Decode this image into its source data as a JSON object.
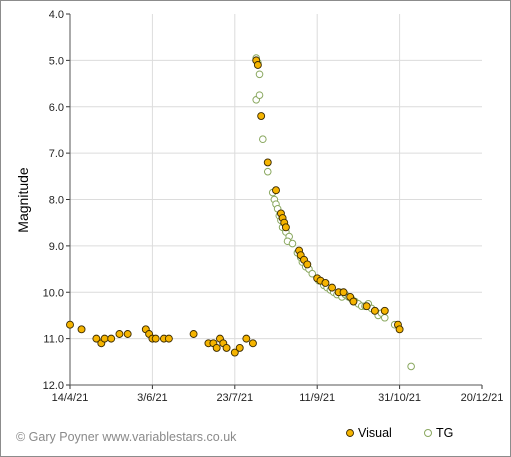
{
  "chart_data": {
    "type": "scatter",
    "ylabel": "Magnitude",
    "y_reversed": true,
    "ylim": [
      4.0,
      12.0
    ],
    "yticks": [
      "4.0",
      "5.0",
      "6.0",
      "7.0",
      "8.0",
      "9.0",
      "10.0",
      "11.0",
      "12.0"
    ],
    "xlim": [
      "2021-04-14",
      "2021-12-20"
    ],
    "xticks": [
      "14/4/21",
      "3/6/21",
      "23/7/21",
      "11/9/21",
      "31/10/21",
      "20/12/21"
    ],
    "grid": true,
    "legend": "bottom-right",
    "credit": "© Gary Poyner www.variablestars.co.uk",
    "series": [
      {
        "name": "Visual",
        "marker": "filled-circle",
        "color": "#f5b400",
        "edge": "#3a2a00",
        "points": [
          [
            "2021-04-14",
            10.7
          ],
          [
            "2021-04-21",
            10.8
          ],
          [
            "2021-04-30",
            11.0
          ],
          [
            "2021-05-03",
            11.1
          ],
          [
            "2021-05-05",
            11.0
          ],
          [
            "2021-05-09",
            11.0
          ],
          [
            "2021-05-14",
            10.9
          ],
          [
            "2021-05-19",
            10.9
          ],
          [
            "2021-05-30",
            10.8
          ],
          [
            "2021-06-01",
            10.9
          ],
          [
            "2021-06-03",
            11.0
          ],
          [
            "2021-06-05",
            11.0
          ],
          [
            "2021-06-10",
            11.0
          ],
          [
            "2021-06-13",
            11.0
          ],
          [
            "2021-06-28",
            10.9
          ],
          [
            "2021-07-07",
            11.1
          ],
          [
            "2021-07-10",
            11.1
          ],
          [
            "2021-07-12",
            11.2
          ],
          [
            "2021-07-14",
            11.0
          ],
          [
            "2021-07-16",
            11.1
          ],
          [
            "2021-07-18",
            11.2
          ],
          [
            "2021-07-23",
            11.3
          ],
          [
            "2021-07-26",
            11.2
          ],
          [
            "2021-07-30",
            11.0
          ],
          [
            "2021-08-03",
            11.1
          ],
          [
            "2021-08-05",
            5.0
          ],
          [
            "2021-08-06",
            5.1
          ],
          [
            "2021-08-08",
            6.2
          ],
          [
            "2021-08-12",
            7.2
          ],
          [
            "2021-08-17",
            7.8
          ],
          [
            "2021-08-20",
            8.3
          ],
          [
            "2021-08-21",
            8.4
          ],
          [
            "2021-08-22",
            8.5
          ],
          [
            "2021-08-23",
            8.6
          ],
          [
            "2021-08-31",
            9.1
          ],
          [
            "2021-09-01",
            9.2
          ],
          [
            "2021-09-03",
            9.3
          ],
          [
            "2021-09-05",
            9.4
          ],
          [
            "2021-09-11",
            9.7
          ],
          [
            "2021-09-13",
            9.75
          ],
          [
            "2021-09-16",
            9.8
          ],
          [
            "2021-09-20",
            9.9
          ],
          [
            "2021-09-24",
            10.0
          ],
          [
            "2021-09-27",
            10.0
          ],
          [
            "2021-10-01",
            10.1
          ],
          [
            "2021-10-03",
            10.2
          ],
          [
            "2021-10-11",
            10.3
          ],
          [
            "2021-10-16",
            10.4
          ],
          [
            "2021-10-22",
            10.4
          ],
          [
            "2021-10-30",
            10.7
          ],
          [
            "2021-10-31",
            10.8
          ]
        ]
      },
      {
        "name": "TG",
        "marker": "open-circle",
        "color": "#8aa860",
        "points": [
          [
            "2021-08-05",
            4.95
          ],
          [
            "2021-08-06",
            5.05
          ],
          [
            "2021-08-07",
            5.3
          ],
          [
            "2021-08-05",
            5.85
          ],
          [
            "2021-08-07",
            5.75
          ],
          [
            "2021-08-09",
            6.7
          ],
          [
            "2021-08-12",
            7.4
          ],
          [
            "2021-08-15",
            7.85
          ],
          [
            "2021-08-16",
            8.0
          ],
          [
            "2021-08-17",
            8.1
          ],
          [
            "2021-08-18",
            8.2
          ],
          [
            "2021-08-19",
            8.35
          ],
          [
            "2021-08-20",
            8.45
          ],
          [
            "2021-08-21",
            8.6
          ],
          [
            "2021-08-23",
            8.7
          ],
          [
            "2021-08-25",
            8.8
          ],
          [
            "2021-08-24",
            8.9
          ],
          [
            "2021-08-27",
            8.95
          ],
          [
            "2021-08-30",
            9.15
          ],
          [
            "2021-09-01",
            9.25
          ],
          [
            "2021-09-02",
            9.35
          ],
          [
            "2021-09-04",
            9.45
          ],
          [
            "2021-09-06",
            9.5
          ],
          [
            "2021-09-08",
            9.6
          ],
          [
            "2021-09-12",
            9.75
          ],
          [
            "2021-09-15",
            9.85
          ],
          [
            "2021-09-17",
            9.9
          ],
          [
            "2021-09-19",
            9.95
          ],
          [
            "2021-09-21",
            10.0
          ],
          [
            "2021-09-23",
            10.05
          ],
          [
            "2021-09-25",
            10.0
          ],
          [
            "2021-09-26",
            10.1
          ],
          [
            "2021-09-28",
            10.05
          ],
          [
            "2021-09-30",
            10.1
          ],
          [
            "2021-10-02",
            10.15
          ],
          [
            "2021-10-04",
            10.2
          ],
          [
            "2021-10-06",
            10.25
          ],
          [
            "2021-10-08",
            10.3
          ],
          [
            "2021-10-10",
            10.3
          ],
          [
            "2021-10-12",
            10.25
          ],
          [
            "2021-10-14",
            10.35
          ],
          [
            "2021-10-16",
            10.4
          ],
          [
            "2021-10-18",
            10.5
          ],
          [
            "2021-10-20",
            10.45
          ],
          [
            "2021-10-22",
            10.55
          ],
          [
            "2021-10-28",
            10.7
          ],
          [
            "2021-11-07",
            11.6
          ]
        ]
      }
    ]
  }
}
